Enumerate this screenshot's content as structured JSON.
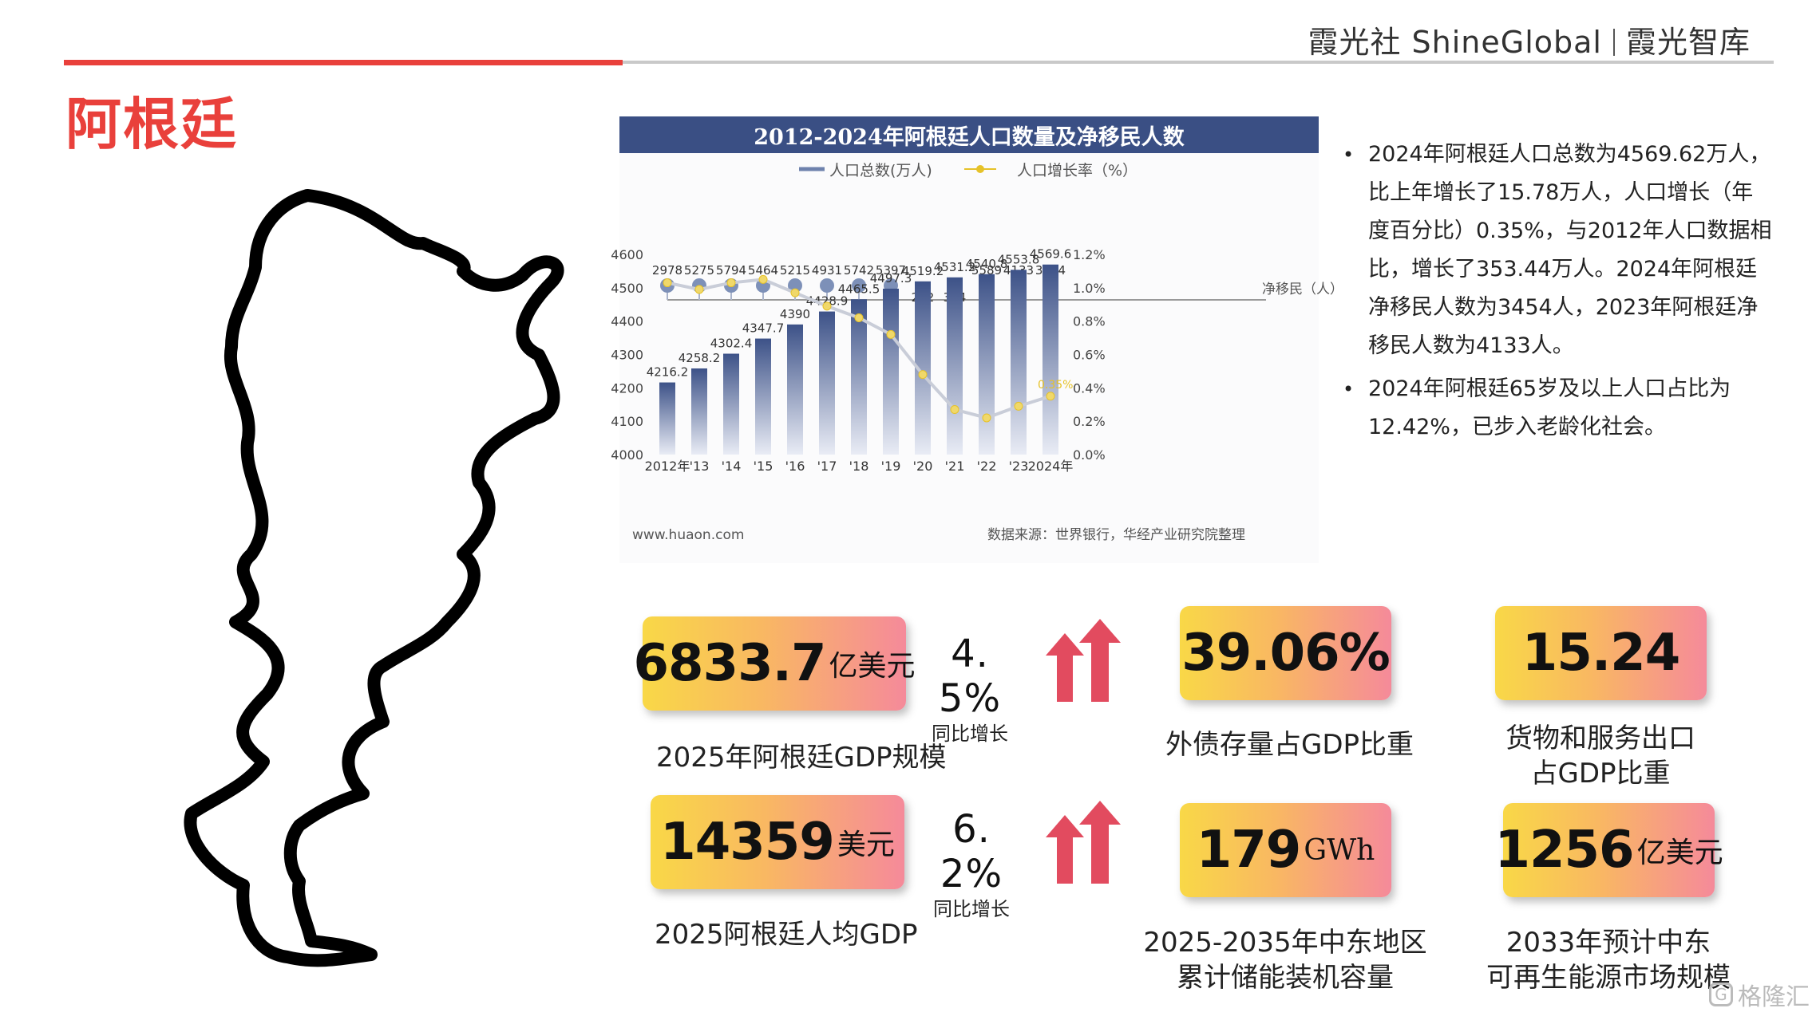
{
  "header": {
    "brand_left": "霞光社 ShineGlobal",
    "brand_right": "霞光智库"
  },
  "page_title": "阿根廷",
  "chart_data": {
    "type": "bar",
    "title": "2012-2024年阿根廷人口数量及净移民人数",
    "legend": [
      "人口总数(万人)",
      "人口增长率（%）"
    ],
    "categories": [
      "2012年",
      "'13",
      "'14",
      "'15",
      "'16",
      "'17",
      "'18",
      "'19",
      "'20",
      "'21",
      "'22",
      "'23",
      "2024年"
    ],
    "series": [
      {
        "name": "人口总数(万人)",
        "type": "bar",
        "values": [
          4216.2,
          4258.2,
          4302.4,
          4347.7,
          4390,
          4428.9,
          4465.5,
          4497.3,
          4519.2,
          4531.2,
          4540.8,
          4553.8,
          4569.6
        ],
        "labels": [
          "4216.2",
          "4258.2",
          "4302.4",
          "4347.7",
          "4390",
          "4428.9",
          "4465.5",
          "4497.3",
          "4519.2",
          "4531.2",
          "4540.8",
          "4553.8",
          "4569.6"
        ]
      },
      {
        "name": "人口增长率（%）",
        "type": "line",
        "values": [
          1.03,
          0.99,
          1.03,
          1.05,
          0.97,
          0.89,
          0.82,
          0.72,
          0.48,
          0.27,
          0.22,
          0.29,
          0.35
        ],
        "end_label": "0.35%"
      }
    ],
    "net_migrants": {
      "label": "净移民（人）",
      "values": [
        2978,
        5275,
        5794,
        5464,
        5215,
        4931,
        5742,
        5397,
        292,
        314,
        5589,
        4133,
        3454
      ]
    },
    "y_left_ticks": [
      "4600",
      "4500",
      "4400",
      "4300",
      "4200",
      "4100",
      "4000"
    ],
    "y_right_ticks": [
      "1.2%",
      "1.0%",
      "0.8%",
      "0.6%",
      "0.4%",
      "0.2%",
      "0.0%"
    ],
    "ylim_left": [
      4000,
      4600
    ],
    "ylim_right": [
      0,
      1.2
    ],
    "source_left": "www.huaon.com",
    "source_right": "数据来源：世界银行，华经产业研究院整理",
    "watermark": "华经产业研究院"
  },
  "bullets": [
    "2024年阿根廷人口总数为4569.62万人，比上年增长了15.78万人，人口增长（年度百分比）0.35%，与2012年人口数据相比，增长了353.44万人。2024年阿根廷净移民人数为3454人，2023年阿根廷净移民人数为4133人。",
    "2024年阿根廷65岁及以上人口占比为12.42%，已步入老龄化社会。"
  ],
  "stats": {
    "gdp": {
      "value": "6833.7",
      "unit": "亿美元",
      "label": "2025年阿根廷GDP规模",
      "growth": "4. 5%",
      "growth_label": "同比增长"
    },
    "gdp_per_capita": {
      "value": "14359",
      "unit": "美元",
      "label": "2025阿根廷人均GDP",
      "growth": "6. 2%",
      "growth_label": "同比增长"
    },
    "external_debt": {
      "value": "39.06%",
      "label": "外债存量占GDP比重"
    },
    "exports": {
      "value": "15.24",
      "label_line1": "货物和服务出口",
      "label_line2": "占GDP比重"
    },
    "storage": {
      "value": "179",
      "unit": "GWh",
      "label_line1": "2025-2035年中东地区",
      "label_line2": "累计储能装机容量"
    },
    "renewables": {
      "value": "1256",
      "unit": "亿美元",
      "label_line1": "2033年预计中东",
      "label_line2": "可再生能源市场规模"
    }
  },
  "watermark": "格隆汇",
  "colors": {
    "accent_red": "#e9403b",
    "chart_header": "#3a4f84",
    "bar_top": "#3d5288",
    "line": "#e6c229",
    "marker": "#7d90b8",
    "card_left": "#f9d847",
    "card_right": "#f58a9a",
    "arrow": "#e24b5f"
  }
}
